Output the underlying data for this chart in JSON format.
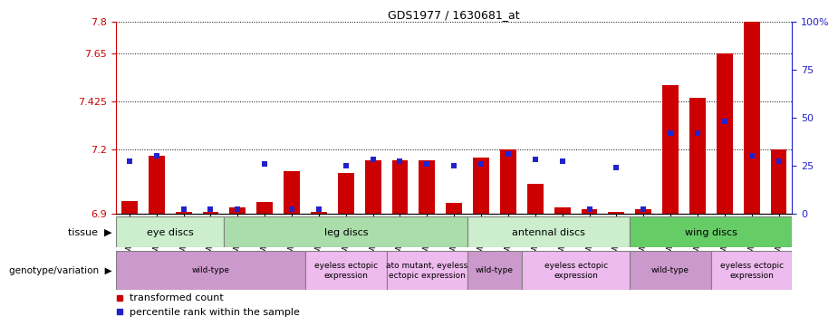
{
  "title": "GDS1977 / 1630681_at",
  "samples": [
    "GSM91570",
    "GSM91585",
    "GSM91609",
    "GSM91616",
    "GSM91617",
    "GSM91618",
    "GSM91619",
    "GSM91478",
    "GSM91479",
    "GSM91480",
    "GSM91472",
    "GSM91473",
    "GSM91474",
    "GSM91484",
    "GSM91491",
    "GSM91515",
    "GSM91475",
    "GSM91476",
    "GSM91477",
    "GSM91620",
    "GSM91621",
    "GSM91622",
    "GSM91481",
    "GSM91482",
    "GSM91483"
  ],
  "bar_values": [
    6.96,
    7.17,
    6.905,
    6.905,
    6.93,
    6.955,
    7.1,
    6.905,
    7.09,
    7.15,
    7.15,
    7.15,
    6.95,
    7.16,
    7.2,
    7.04,
    6.93,
    6.92,
    6.905,
    6.92,
    7.5,
    7.44,
    7.65,
    7.8,
    7.2
  ],
  "percentile_values_pct": [
    27,
    30,
    2,
    2,
    2,
    26,
    2,
    2,
    25,
    28,
    27,
    26,
    25,
    26,
    31,
    28,
    27,
    2,
    24,
    2,
    42,
    42,
    48,
    30,
    27
  ],
  "ylim_left": [
    6.9,
    7.8
  ],
  "yticks_left": [
    6.9,
    7.2,
    7.425,
    7.65,
    7.8
  ],
  "ytick_labels_left": [
    "6.9",
    "7.2",
    "7.425",
    "7.65",
    "7.8"
  ],
  "ylim_right": [
    0,
    100
  ],
  "yticks_right": [
    0,
    25,
    50,
    75,
    100
  ],
  "ytick_labels_right": [
    "0",
    "25",
    "50",
    "75",
    "100%"
  ],
  "bar_color": "#cc0000",
  "percentile_color": "#2222cc",
  "tissue_groups": [
    {
      "label": "eye discs",
      "start": 0,
      "end": 4,
      "color": "#cceecc"
    },
    {
      "label": "leg discs",
      "start": 4,
      "end": 13,
      "color": "#aaddaa"
    },
    {
      "label": "antennal discs",
      "start": 13,
      "end": 19,
      "color": "#cceecc"
    },
    {
      "label": "wing discs",
      "start": 19,
      "end": 25,
      "color": "#66cc66"
    }
  ],
  "genotype_groups": [
    {
      "label": "wild-type",
      "start": 0,
      "end": 7,
      "color": "#cc99cc"
    },
    {
      "label": "eyeless ectopic\nexpression",
      "start": 7,
      "end": 10,
      "color": "#eebbee"
    },
    {
      "label": "ato mutant, eyeless\nectopic expression",
      "start": 10,
      "end": 13,
      "color": "#eebbee"
    },
    {
      "label": "wild-type",
      "start": 13,
      "end": 15,
      "color": "#cc99cc"
    },
    {
      "label": "eyeless ectopic\nexpression",
      "start": 15,
      "end": 19,
      "color": "#eebbee"
    },
    {
      "label": "wild-type",
      "start": 19,
      "end": 22,
      "color": "#cc99cc"
    },
    {
      "label": "eyeless ectopic\nexpression",
      "start": 22,
      "end": 25,
      "color": "#eebbee"
    }
  ],
  "bg_color": "#f0f0f0",
  "plot_bg": "#ffffff"
}
